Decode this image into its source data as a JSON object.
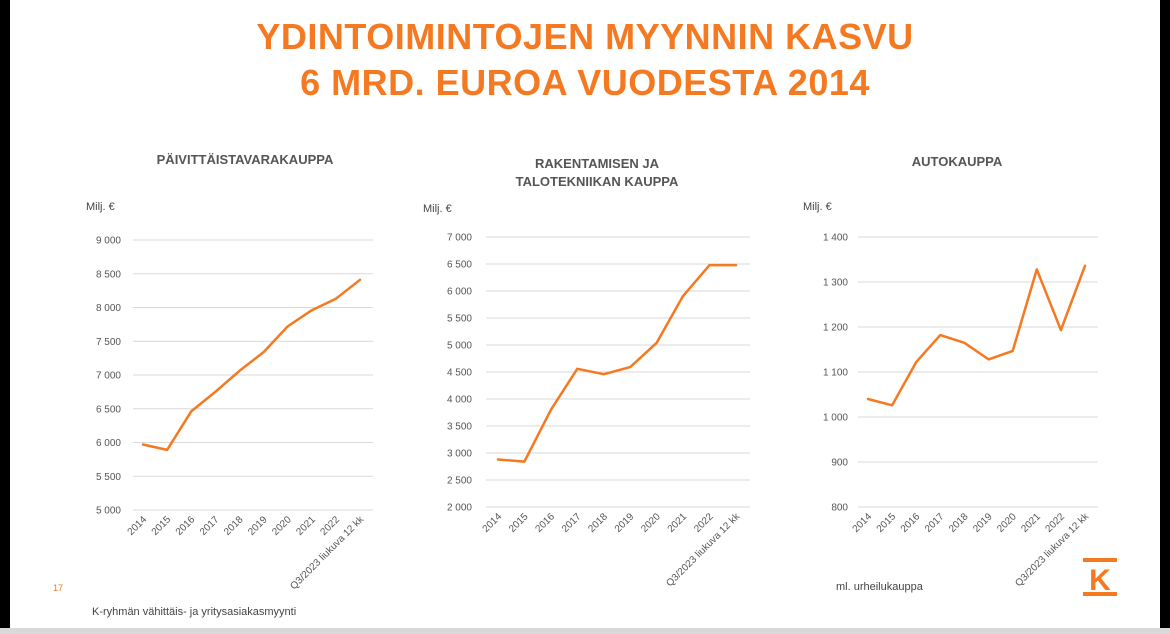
{
  "slide": {
    "title_line1": "YDINTOIMINTOJEN MYYNNIN KASVU",
    "title_line2": "6 MRD. EUROA VUODESTA 2014",
    "page_number": "17",
    "footnote_left": "K-ryhmän vähittäis- ja yritysasiakasmyynti",
    "footnote_right": "ml. urheilukauppa",
    "logo_letter": "K",
    "accent_color": "#f47920"
  },
  "chart_data": [
    {
      "type": "line",
      "title": "PÄIVITTÄISTAVARAKAUPPA",
      "unit_label": "Milj. €",
      "categories": [
        "2014",
        "2015",
        "2016",
        "2017",
        "2018",
        "2019",
        "2020",
        "2021",
        "2022",
        "Q3/2023 liukuva 12 kk"
      ],
      "values": [
        5970,
        5890,
        6460,
        6750,
        7060,
        7340,
        7720,
        7960,
        8130,
        8410
      ],
      "ylim": [
        5000,
        9000
      ],
      "yticks": [
        5000,
        5500,
        6000,
        6500,
        7000,
        7500,
        8000,
        8500,
        9000
      ],
      "ytick_labels": [
        "5 000",
        "5 500",
        "6 000",
        "6 500",
        "7 000",
        "7 500",
        "8 000",
        "8 500",
        "9 000"
      ],
      "grid": true,
      "color": "#f47920"
    },
    {
      "type": "line",
      "title": "RAKENTAMISEN JA TALOTEKNIIKAN KAUPPA",
      "title_lines": [
        "RAKENTAMISEN JA",
        "TALOTEKNIIKAN KAUPPA"
      ],
      "unit_label": "Milj. €",
      "categories": [
        "2014",
        "2015",
        "2016",
        "2017",
        "2018",
        "2019",
        "2020",
        "2021",
        "2022",
        "Q3/2023 liukuva 12 kk"
      ],
      "values": [
        2880,
        2840,
        3800,
        4560,
        4460,
        4590,
        5040,
        5910,
        6480,
        6480
      ],
      "ylim": [
        2000,
        7000
      ],
      "yticks": [
        2000,
        2500,
        3000,
        3500,
        4000,
        4500,
        5000,
        5500,
        6000,
        6500,
        7000
      ],
      "ytick_labels": [
        "2 000",
        "2 500",
        "3 000",
        "3 500",
        "4 000",
        "4 500",
        "5 000",
        "5 500",
        "6 000",
        "6 500",
        "7 000"
      ],
      "grid": true,
      "color": "#f47920"
    },
    {
      "type": "line",
      "title": "AUTOKAUPPA",
      "unit_label": "Milj. €",
      "categories": [
        "2014",
        "2015",
        "2016",
        "2017",
        "2018",
        "2019",
        "2020",
        "2021",
        "2022",
        "Q3/2023 liukuva 12 kk"
      ],
      "values": [
        1040,
        1026,
        1122,
        1182,
        1165,
        1128,
        1147,
        1328,
        1193,
        1336
      ],
      "ylim": [
        800,
        1400
      ],
      "yticks": [
        800,
        900,
        1000,
        1100,
        1200,
        1300,
        1400
      ],
      "ytick_labels": [
        "800",
        "900",
        "1 000",
        "1 100",
        "1 200",
        "1 300",
        "1 400"
      ],
      "grid": true,
      "color": "#f47920"
    }
  ]
}
